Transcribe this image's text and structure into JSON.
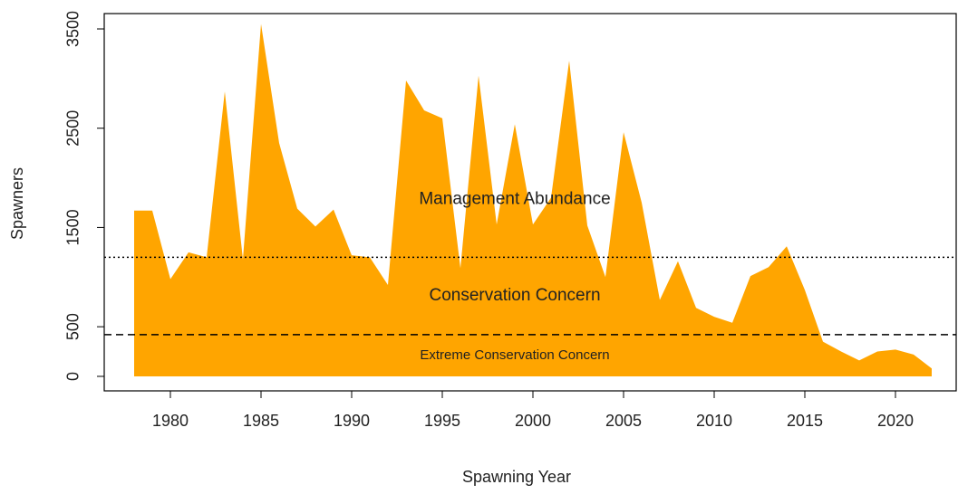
{
  "chart_data": {
    "type": "area",
    "x_label": "Spawning Year",
    "y_label": "Spawners",
    "x": [
      1978,
      1979,
      1980,
      1981,
      1982,
      1983,
      1984,
      1985,
      1986,
      1987,
      1988,
      1989,
      1990,
      1991,
      1992,
      1993,
      1994,
      1995,
      1996,
      1997,
      1998,
      1999,
      2000,
      2001,
      2002,
      2003,
      2004,
      2005,
      2006,
      2007,
      2008,
      2009,
      2010,
      2011,
      2012,
      2013,
      2014,
      2015,
      2016,
      2017,
      2018,
      2019,
      2020,
      2021,
      2022
    ],
    "values": [
      1670,
      1670,
      980,
      1250,
      1200,
      2870,
      1180,
      3550,
      2350,
      1690,
      1510,
      1680,
      1220,
      1200,
      920,
      2980,
      2680,
      2600,
      1090,
      3030,
      1530,
      2540,
      1530,
      1800,
      3180,
      1520,
      1000,
      2460,
      1750,
      770,
      1160,
      690,
      600,
      540,
      1010,
      1100,
      1310,
      870,
      350,
      250,
      160,
      250,
      270,
      220,
      80
    ],
    "color": "#ffa500",
    "xlim": [
      1976.35,
      2023.35
    ],
    "xticks": [
      1980,
      1985,
      1990,
      1995,
      2000,
      2005,
      2010,
      2015,
      2020
    ],
    "ylim": [
      -146,
      3655
    ],
    "yticks": [
      0,
      500,
      1500,
      2500,
      3500
    ],
    "reference_lines": [
      {
        "value": 1200,
        "style": "dotted"
      },
      {
        "value": 420,
        "style": "dashed"
      }
    ],
    "annotations": [
      {
        "text": "Management Abundance",
        "x": 1999,
        "y": 1780
      },
      {
        "text": "Conservation Concern",
        "x": 1999,
        "y": 810
      },
      {
        "text": "Extreme Conservation Concern",
        "x": 1999,
        "y": 210
      }
    ]
  }
}
